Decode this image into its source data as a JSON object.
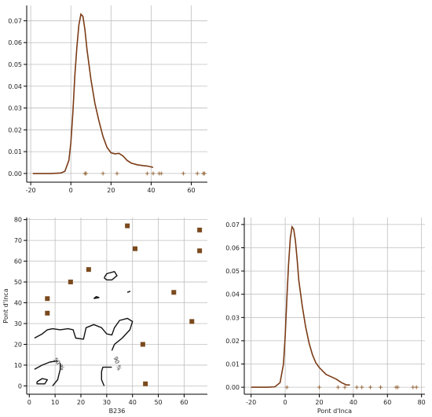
{
  "chart_data": [
    {
      "type": "line",
      "subtype": "kde-with-rug",
      "xlabel": "",
      "ylabel": "",
      "xlim": [
        -22,
        68
      ],
      "ylim": [
        -0.004,
        0.077
      ],
      "xticks": [
        -20,
        0,
        20,
        40,
        60
      ],
      "yticks": [
        0.0,
        0.01,
        0.02,
        0.03,
        0.04,
        0.05,
        0.06,
        0.07
      ],
      "ytick_labels": [
        "0.00",
        "0.01",
        "0.02",
        "0.03",
        "0.04",
        "0.05",
        "0.06",
        "0.07"
      ],
      "grid": true,
      "line_color": "#7b3b16",
      "rug_color": "#8b5a2b",
      "curve": [
        [
          -19,
          0.0
        ],
        [
          -10,
          0.0
        ],
        [
          -5,
          0.0002
        ],
        [
          -3,
          0.001
        ],
        [
          -1,
          0.006
        ],
        [
          0,
          0.014
        ],
        [
          1,
          0.028
        ],
        [
          2,
          0.045
        ],
        [
          3,
          0.058
        ],
        [
          4,
          0.068
        ],
        [
          5,
          0.073
        ],
        [
          6,
          0.072
        ],
        [
          7,
          0.066
        ],
        [
          8,
          0.057
        ],
        [
          10,
          0.043
        ],
        [
          12,
          0.032
        ],
        [
          14,
          0.024
        ],
        [
          16,
          0.017
        ],
        [
          18,
          0.012
        ],
        [
          20,
          0.0095
        ],
        [
          22,
          0.009
        ],
        [
          24,
          0.0092
        ],
        [
          26,
          0.008
        ],
        [
          28,
          0.006
        ],
        [
          30,
          0.0048
        ],
        [
          33,
          0.004
        ],
        [
          36,
          0.0036
        ],
        [
          38,
          0.0034
        ],
        [
          41,
          0.0028
        ]
      ],
      "rug": [
        7,
        7.5,
        16,
        23,
        38,
        41,
        45,
        44,
        56,
        63,
        66,
        66.5
      ]
    },
    {
      "type": "scatter",
      "subtype": "scatter-with-kde-contours",
      "xlabel": "B236",
      "ylabel": "Pont d'Inca",
      "xlim": [
        -1,
        69
      ],
      "ylim": [
        -4,
        81
      ],
      "xticks": [
        0,
        10,
        20,
        30,
        40,
        50,
        60
      ],
      "yticks": [
        0,
        10,
        20,
        30,
        40,
        50,
        60,
        70,
        80
      ],
      "grid": true,
      "marker_color": "#7a4a1e",
      "points": [
        [
          7,
          42
        ],
        [
          7,
          35
        ],
        [
          16,
          50
        ],
        [
          23,
          56
        ],
        [
          38,
          77
        ],
        [
          41,
          66
        ],
        [
          44,
          20
        ],
        [
          45,
          1
        ],
        [
          56,
          45
        ],
        [
          63,
          31
        ],
        [
          66,
          75
        ],
        [
          66,
          65
        ]
      ],
      "contour_labels": [
        {
          "text": "50 %",
          "x": 11,
          "y": 10,
          "rotate": 52
        },
        {
          "text": "90 %",
          "x": 33.5,
          "y": 10.5,
          "rotate": 72
        }
      ],
      "contours": [
        [
          [
            2,
            23
          ],
          [
            5,
            25
          ],
          [
            7,
            27
          ],
          [
            9,
            27.5
          ],
          [
            12,
            27
          ],
          [
            15,
            27.5
          ],
          [
            17,
            27
          ],
          [
            18,
            23
          ],
          [
            21,
            22.5
          ],
          [
            22,
            28
          ],
          [
            25,
            29.5
          ],
          [
            28,
            28
          ],
          [
            30,
            25
          ],
          [
            32,
            24.5
          ],
          [
            33,
            28
          ],
          [
            35,
            31.5
          ],
          [
            38,
            32.5
          ],
          [
            40,
            31
          ],
          [
            39,
            27
          ],
          [
            36,
            23
          ],
          [
            34,
            21
          ],
          [
            33,
            20
          ],
          [
            32,
            17
          ]
        ],
        [
          [
            29,
            52
          ],
          [
            30,
            54
          ],
          [
            33,
            55
          ],
          [
            34,
            53
          ],
          [
            32,
            51
          ],
          [
            30,
            51
          ],
          [
            29,
            52
          ]
        ],
        [
          [
            25,
            42
          ],
          [
            27,
            42.5
          ],
          [
            26,
            43
          ],
          [
            25,
            42
          ]
        ],
        [
          [
            38,
            45
          ],
          [
            39,
            45.5
          ],
          [
            38.5,
            45.2
          ]
        ],
        [
          [
            2,
            8
          ],
          [
            5,
            10
          ],
          [
            8,
            11.5
          ],
          [
            11,
            12
          ]
        ],
        [
          [
            9,
            0
          ],
          [
            11,
            3
          ],
          [
            12,
            8
          ],
          [
            12,
            11
          ]
        ],
        [
          [
            3,
            2
          ],
          [
            5,
            3.5
          ],
          [
            7,
            3
          ],
          [
            6,
            1
          ],
          [
            3,
            1
          ],
          [
            3,
            2
          ]
        ],
        [
          [
            29,
            0
          ],
          [
            28,
            3
          ],
          [
            28,
            7
          ],
          [
            28.5,
            9
          ],
          [
            32,
            9
          ]
        ]
      ]
    },
    {
      "type": "line",
      "subtype": "kde-with-rug",
      "xlabel": "Pont d'Inca",
      "ylabel": "",
      "xlim": [
        -24,
        82
      ],
      "ylim": [
        -0.003,
        0.073
      ],
      "xticks": [
        -20,
        0,
        20,
        40,
        60,
        80
      ],
      "yticks": [
        0.0,
        0.01,
        0.02,
        0.03,
        0.04,
        0.05,
        0.06,
        0.07
      ],
      "ytick_labels": [
        "0.00",
        "0.01",
        "0.02",
        "0.03",
        "0.04",
        "0.05",
        "0.06",
        "0.07"
      ],
      "grid": true,
      "line_color": "#7b3b16",
      "rug_color": "#8b5a2b",
      "curve": [
        [
          -20,
          0.0
        ],
        [
          -10,
          0.0
        ],
        [
          -6,
          0.0002
        ],
        [
          -3,
          0.002
        ],
        [
          -1,
          0.01
        ],
        [
          0,
          0.022
        ],
        [
          1,
          0.038
        ],
        [
          2,
          0.053
        ],
        [
          3,
          0.064
        ],
        [
          4,
          0.069
        ],
        [
          5,
          0.068
        ],
        [
          6,
          0.063
        ],
        [
          7,
          0.055
        ],
        [
          8,
          0.046
        ],
        [
          10,
          0.035
        ],
        [
          12,
          0.026
        ],
        [
          14,
          0.019
        ],
        [
          16,
          0.014
        ],
        [
          18,
          0.0105
        ],
        [
          20,
          0.0085
        ],
        [
          22,
          0.007
        ],
        [
          24,
          0.0055
        ],
        [
          27,
          0.0045
        ],
        [
          30,
          0.0035
        ],
        [
          33,
          0.002
        ],
        [
          36,
          0.001
        ],
        [
          38,
          0.001
        ]
      ],
      "rug": [
        1,
        20,
        31,
        35,
        42,
        45,
        50,
        56,
        65,
        66,
        75,
        77
      ]
    }
  ]
}
